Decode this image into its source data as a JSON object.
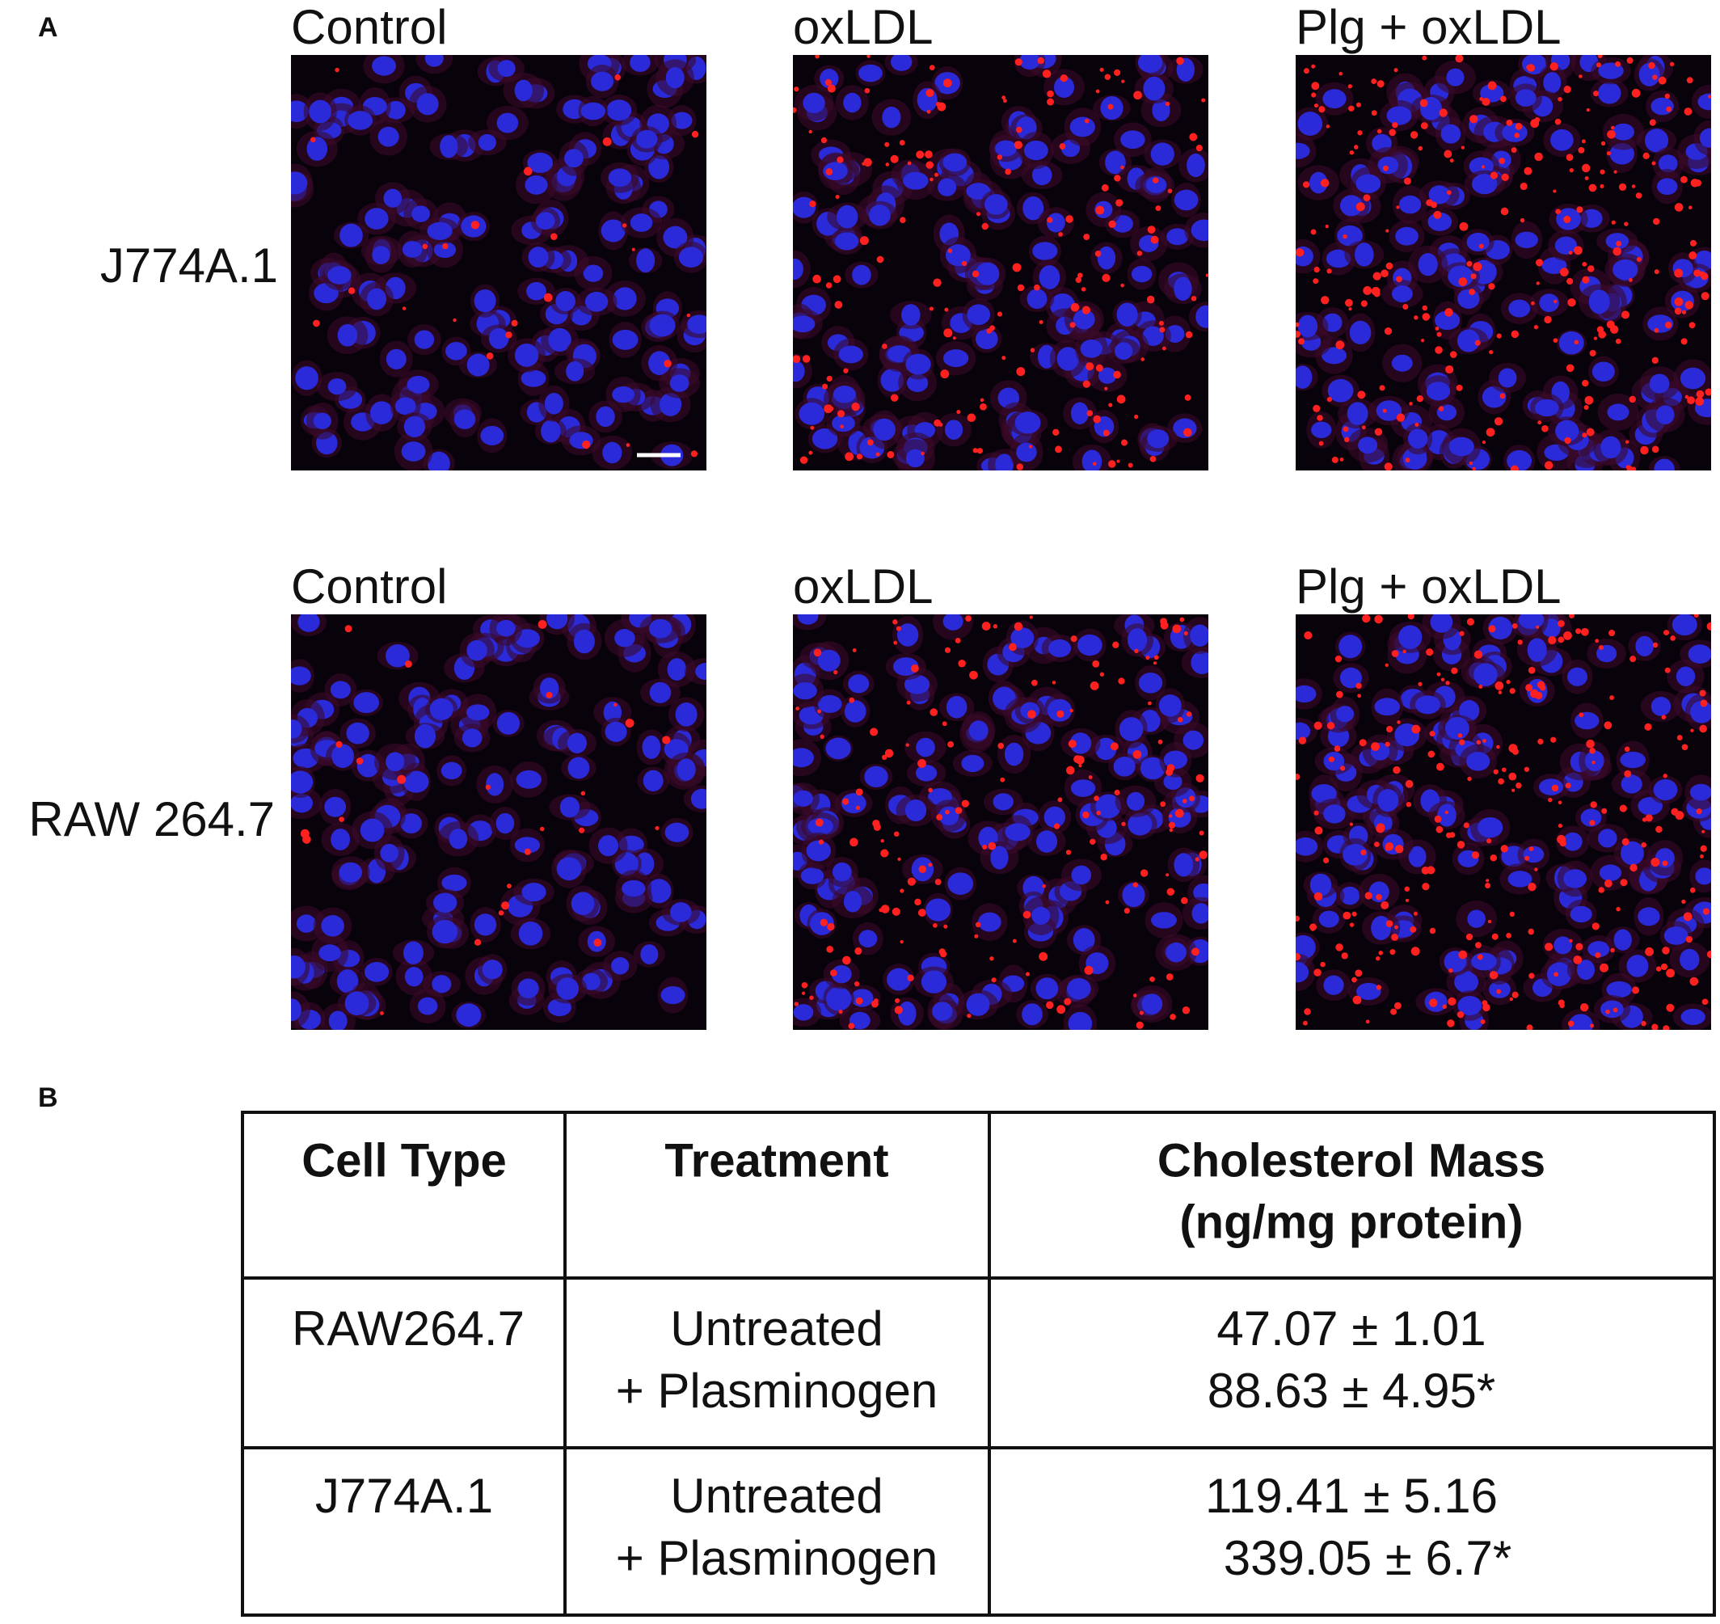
{
  "panel_a": {
    "letter": "A",
    "column_labels": [
      "Control",
      "oxLDL",
      "Plg + oxLDL"
    ],
    "row_labels": [
      "J774A.1",
      "RAW 264.7"
    ]
  },
  "panel_b": {
    "letter": "B",
    "table": {
      "header": [
        "Cell Type",
        "Treatment",
        [
          "Cholesterol Mass",
          "(ng/mg protein)"
        ]
      ],
      "rows": [
        [
          "RAW264.7",
          [
            "Untreated",
            "+ Plasminogen"
          ],
          [
            "47.07 ± 1.01",
            "88.63 ± 4.95*"
          ]
        ],
        [
          "J774A.1",
          [
            "Untreated",
            "+ Plasminogen"
          ],
          [
            "119.41 ± 5.16",
            "339.05 ± 6.7*"
          ]
        ]
      ]
    }
  }
}
